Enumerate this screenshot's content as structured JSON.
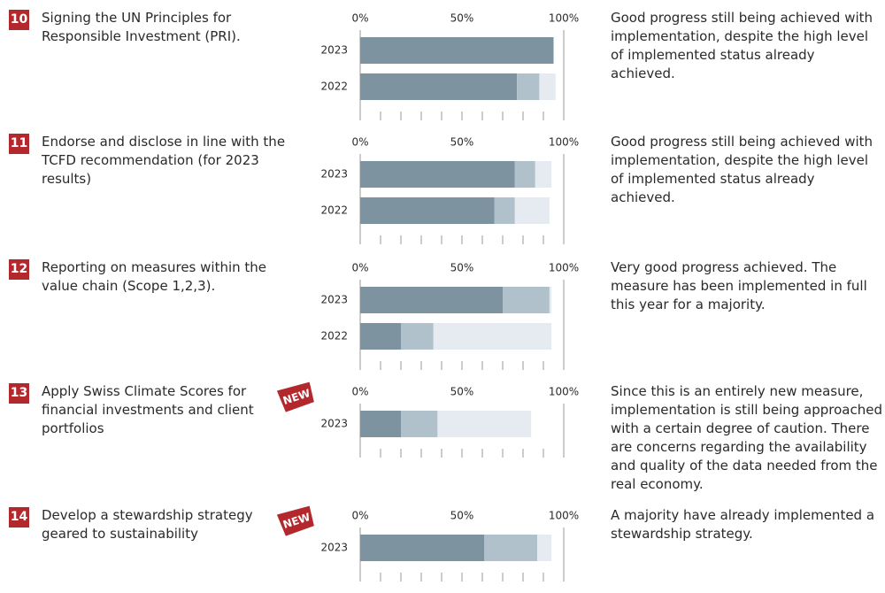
{
  "items": [
    {
      "number": "10",
      "title": "Signing the UN Principles for Responsible Investment (PRI).",
      "description": "Good progress still being achieved with implementation, despite the high level of implemented status already achieved."
    },
    {
      "number": "11",
      "title": "Endorse and disclose in line with the TCFD recommendation (for 2023 results)",
      "description": "Good progress still being achieved with implementation, despite the high level of implemented status already achieved."
    },
    {
      "number": "12",
      "title": "Reporting on measures within the value chain (Scope 1,2,3).",
      "description": "Very good progress achieved. The measure has been implemented in full this year for a majority."
    },
    {
      "number": "13",
      "title": "Apply Swiss Climate Scores for financial investments and client portfolios",
      "badge": "NEW",
      "description": "Since this is an entirely new measure, implementation is still being approached with a certain degree of caution. There are concerns regarding the availability and quality of the data needed from the real economy."
    },
    {
      "number": "14",
      "title": "Develop a stewardship strategy geared to sustainability",
      "badge": "NEW",
      "description": "A majority have already implemented a stewardship strategy."
    }
  ],
  "chart_data": [
    {
      "type": "stacked-barh",
      "categories": [
        "2023",
        "2022"
      ],
      "xlim": [
        0,
        100
      ],
      "xticks": [
        {
          "value": 0,
          "label": "0%"
        },
        {
          "value": 50,
          "label": "50%"
        },
        {
          "value": 100,
          "label": "100%"
        }
      ],
      "minor_xticks": [
        0,
        10,
        20,
        30,
        40,
        50,
        60,
        70,
        80,
        90,
        100
      ],
      "series": [
        {
          "color": "#7d939f",
          "values": [
            95,
            77
          ]
        },
        {
          "color": "#b1c1cc",
          "values": [
            0,
            11
          ]
        },
        {
          "color": "#e6ebf1",
          "values": [
            0,
            8
          ]
        }
      ]
    },
    {
      "type": "stacked-barh",
      "categories": [
        "2023",
        "2022"
      ],
      "xlim": [
        0,
        100
      ],
      "xticks": [
        {
          "value": 0,
          "label": "0%"
        },
        {
          "value": 50,
          "label": "50%"
        },
        {
          "value": 100,
          "label": "100%"
        }
      ],
      "minor_xticks": [
        0,
        10,
        20,
        30,
        40,
        50,
        60,
        70,
        80,
        90,
        100
      ],
      "series": [
        {
          "color": "#7d939f",
          "values": [
            76,
            66
          ]
        },
        {
          "color": "#b1c1cc",
          "values": [
            10,
            10
          ]
        },
        {
          "color": "#e6ebf1",
          "values": [
            8,
            17
          ]
        }
      ]
    },
    {
      "type": "stacked-barh",
      "categories": [
        "2023",
        "2022"
      ],
      "xlim": [
        0,
        100
      ],
      "xticks": [
        {
          "value": 0,
          "label": "0%"
        },
        {
          "value": 50,
          "label": "50%"
        },
        {
          "value": 100,
          "label": "100%"
        }
      ],
      "minor_xticks": [
        0,
        10,
        20,
        30,
        40,
        50,
        60,
        70,
        80,
        90,
        100
      ],
      "series": [
        {
          "color": "#7d939f",
          "values": [
            70,
            20
          ]
        },
        {
          "color": "#b1c1cc",
          "values": [
            23,
            16
          ]
        },
        {
          "color": "#e6ebf1",
          "values": [
            1,
            58
          ]
        }
      ]
    },
    {
      "type": "stacked-barh",
      "categories": [
        "2023"
      ],
      "xlim": [
        0,
        100
      ],
      "xticks": [
        {
          "value": 0,
          "label": "0%"
        },
        {
          "value": 50,
          "label": "50%"
        },
        {
          "value": 100,
          "label": "100%"
        }
      ],
      "minor_xticks": [
        0,
        10,
        20,
        30,
        40,
        50,
        60,
        70,
        80,
        90,
        100
      ],
      "series": [
        {
          "color": "#7d939f",
          "values": [
            20
          ]
        },
        {
          "color": "#b1c1cc",
          "values": [
            18
          ]
        },
        {
          "color": "#e6ebf1",
          "values": [
            46
          ]
        }
      ]
    },
    {
      "type": "stacked-barh",
      "categories": [
        "2023"
      ],
      "xlim": [
        0,
        100
      ],
      "xticks": [
        {
          "value": 0,
          "label": "0%"
        },
        {
          "value": 50,
          "label": "50%"
        },
        {
          "value": 100,
          "label": "100%"
        }
      ],
      "minor_xticks": [
        0,
        10,
        20,
        30,
        40,
        50,
        60,
        70,
        80,
        90,
        100
      ],
      "series": [
        {
          "color": "#7d939f",
          "values": [
            61
          ]
        },
        {
          "color": "#b1c1cc",
          "values": [
            26
          ]
        },
        {
          "color": "#e6ebf1",
          "values": [
            7
          ]
        }
      ]
    }
  ]
}
